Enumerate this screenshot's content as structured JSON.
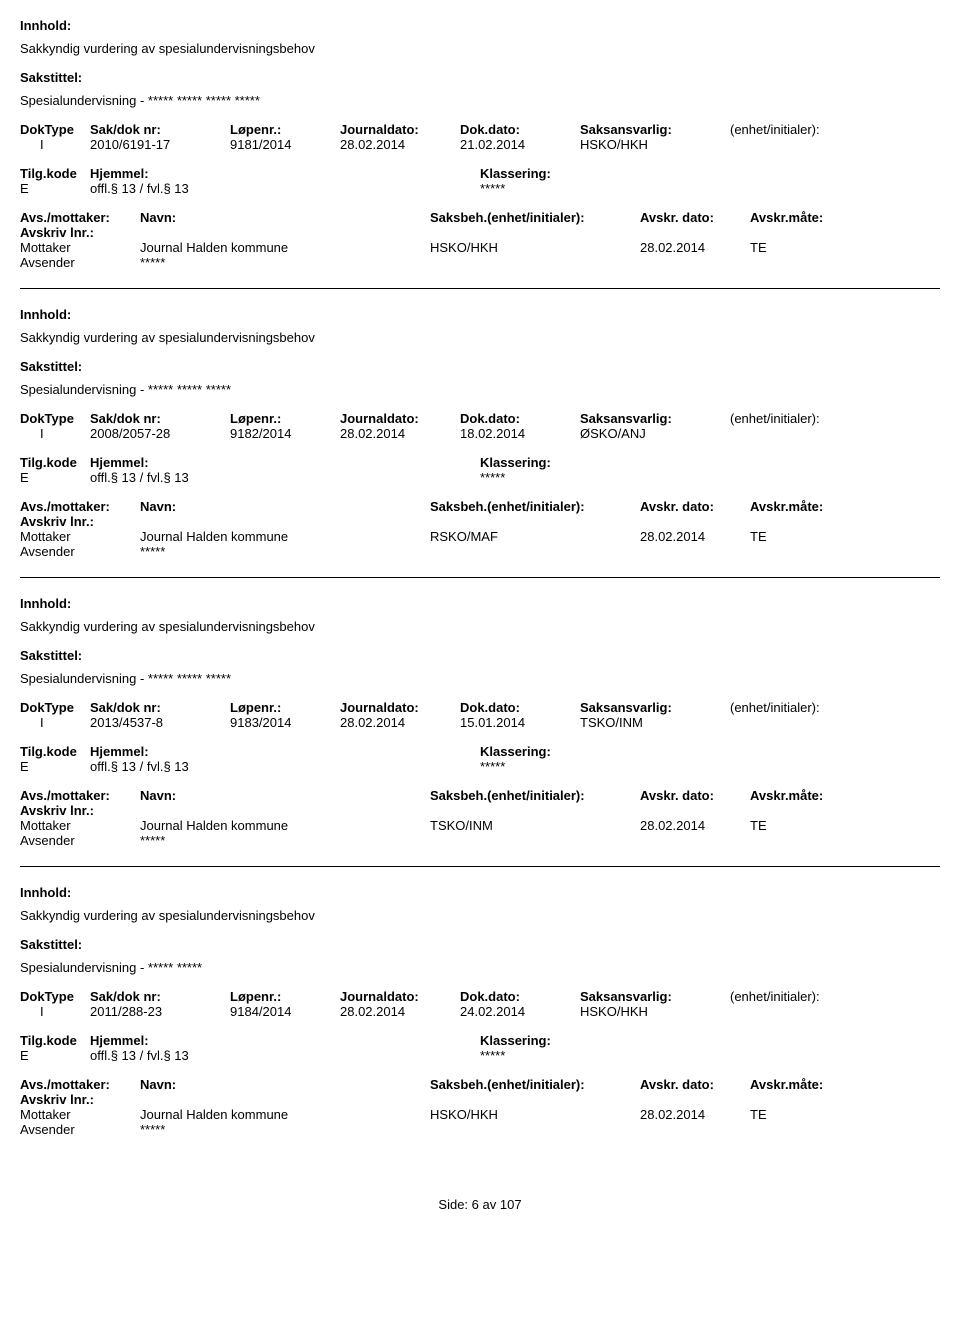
{
  "labels": {
    "innhold": "Innhold:",
    "sakstittel": "Sakstittel:",
    "doktype": "DokType",
    "sakdok": "Sak/dok nr:",
    "lopenr": "Løpenr.:",
    "journaldato": "Journaldato:",
    "dokdato": "Dok.dato:",
    "saksansvarlig": "Saksansvarlig:",
    "enhet": "(enhet/initialer):",
    "tilgkode": "Tilg.kode",
    "hjemmel": "Hjemmel:",
    "klassering": "Klassering:",
    "avsmottaker": "Avs./mottaker:",
    "navn": "Navn:",
    "saksbeh": "Saksbeh.(enhet/initialer):",
    "avskrdato": "Avskr. dato:",
    "avskrmate": "Avskr.måte:",
    "avskrivlnr": "Avskriv lnr.:",
    "mottaker": "Mottaker",
    "avsender": "Avsender"
  },
  "records": [
    {
      "innhold": "Sakkyndig vurdering av spesialundervisningsbehov",
      "sakstittel": "Spesialundervisning - ***** ***** ***** *****",
      "doktype": "I",
      "sakdok": "2010/6191-17",
      "lopenr": "9181/2014",
      "journaldato": "28.02.2014",
      "dokdato": "21.02.2014",
      "saksansvarlig": "HSKO/HKH",
      "tilgkode": "E",
      "hjemmel": "offl.§ 13 / fvl.§ 13",
      "klassering": "*****",
      "mottaker_navn": "Journal Halden kommune",
      "saksbeh": "HSKO/HKH",
      "avskrdato": "28.02.2014",
      "avskrmate": "TE",
      "avsender_navn": "*****"
    },
    {
      "innhold": "Sakkyndig vurdering av spesialundervisningsbehov",
      "sakstittel": "Spesialundervisning - ***** ***** *****",
      "doktype": "I",
      "sakdok": "2008/2057-28",
      "lopenr": "9182/2014",
      "journaldato": "28.02.2014",
      "dokdato": "18.02.2014",
      "saksansvarlig": "ØSKO/ANJ",
      "tilgkode": "E",
      "hjemmel": "offl.§ 13 / fvl.§ 13",
      "klassering": "*****",
      "mottaker_navn": "Journal Halden kommune",
      "saksbeh": "RSKO/MAF",
      "avskrdato": "28.02.2014",
      "avskrmate": "TE",
      "avsender_navn": "*****"
    },
    {
      "innhold": "Sakkyndig vurdering av spesialundervisningsbehov",
      "sakstittel": "Spesialundervisning - ***** ***** *****",
      "doktype": "I",
      "sakdok": "2013/4537-8",
      "lopenr": "9183/2014",
      "journaldato": "28.02.2014",
      "dokdato": "15.01.2014",
      "saksansvarlig": "TSKO/INM",
      "tilgkode": "E",
      "hjemmel": "offl.§ 13 / fvl.§ 13",
      "klassering": "*****",
      "mottaker_navn": "Journal Halden kommune",
      "saksbeh": "TSKO/INM",
      "avskrdato": "28.02.2014",
      "avskrmate": "TE",
      "avsender_navn": "*****"
    },
    {
      "innhold": "Sakkyndig vurdering av spesialundervisningsbehov",
      "sakstittel": "Spesialundervisning - ***** *****",
      "doktype": "I",
      "sakdok": "2011/288-23",
      "lopenr": "9184/2014",
      "journaldato": "28.02.2014",
      "dokdato": "24.02.2014",
      "saksansvarlig": "HSKO/HKH",
      "tilgkode": "E",
      "hjemmel": "offl.§ 13 / fvl.§ 13",
      "klassering": "*****",
      "mottaker_navn": "Journal Halden kommune",
      "saksbeh": "HSKO/HKH",
      "avskrdato": "28.02.2014",
      "avskrmate": "TE",
      "avsender_navn": "*****"
    }
  ],
  "footer": {
    "side_label": "Side:",
    "page": "6",
    "av": "av",
    "total": "107"
  }
}
